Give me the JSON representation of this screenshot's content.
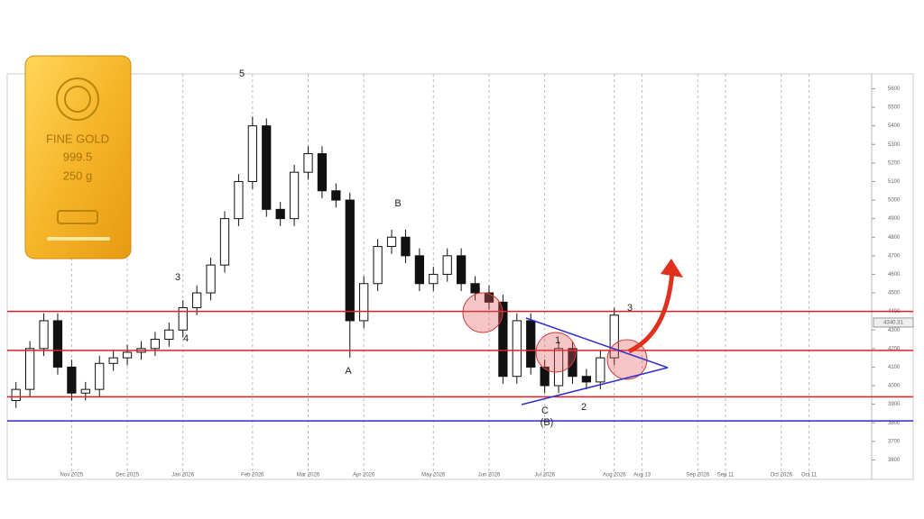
{
  "chart_data": {
    "type": "candlestick",
    "categories": [
      null,
      null,
      null,
      null,
      "Nov 2025",
      null,
      null,
      null,
      "Dec 2025",
      null,
      null,
      null,
      "Jan 2026",
      null,
      null,
      null,
      null,
      "Feb 2026",
      null,
      null,
      null,
      "Mar 2026",
      null,
      null,
      null,
      "Apr 2026",
      null,
      null,
      null,
      null,
      "May 2026",
      null,
      null,
      null,
      "Jun 2026",
      null,
      null,
      null,
      "Jul 2026",
      null,
      null,
      null,
      null,
      "Aug 2026",
      null,
      "Aug 13",
      null,
      null,
      null,
      "Sep 2026",
      null,
      "Sep 11",
      null,
      null,
      null,
      "Oct 2026",
      null,
      "Oct 11",
      null,
      null,
      null,
      null
    ],
    "open": [
      3920,
      3980,
      4200,
      4350,
      4100,
      3960,
      3980,
      4120,
      4150,
      4180,
      4200,
      4250,
      4300,
      4420,
      4500,
      4650,
      4900,
      5100,
      5400,
      4950,
      4900,
      5150,
      5250,
      5050,
      5000,
      4350,
      4550,
      4750,
      4800,
      4700,
      4550,
      4600,
      4700,
      4550,
      4500,
      4450,
      4050,
      4350,
      4100,
      4000,
      4200,
      4050,
      4020,
      4150,
      null,
      null,
      null,
      null,
      null,
      null,
      null,
      null,
      null,
      null,
      null,
      null,
      null,
      null,
      null,
      null,
      null,
      null
    ],
    "high": [
      4020,
      4240,
      4390,
      4390,
      4140,
      4020,
      4160,
      4190,
      4220,
      4240,
      4290,
      4340,
      4460,
      4540,
      4690,
      4940,
      5140,
      5450,
      5440,
      4990,
      5190,
      5290,
      5290,
      5090,
      5040,
      4590,
      4790,
      4840,
      4840,
      4740,
      4640,
      4740,
      4740,
      4590,
      4540,
      4490,
      4390,
      4390,
      4140,
      4240,
      4240,
      4090,
      4190,
      4420,
      null,
      null,
      null,
      null,
      null,
      null,
      null,
      null,
      null,
      null,
      null,
      null,
      null,
      null,
      null,
      null,
      null,
      null
    ],
    "low": [
      3880,
      3940,
      4160,
      4060,
      3920,
      3920,
      3940,
      4080,
      4110,
      4140,
      4160,
      4210,
      4260,
      4380,
      4460,
      4610,
      4860,
      5060,
      4910,
      4860,
      4860,
      5110,
      5010,
      4960,
      4150,
      4310,
      4510,
      4710,
      4660,
      4510,
      4510,
      4560,
      4510,
      4460,
      4410,
      4010,
      4010,
      4060,
      3960,
      3960,
      4010,
      3980,
      3980,
      4110,
      null,
      null,
      null,
      null,
      null,
      null,
      null,
      null,
      null,
      null,
      null,
      null,
      null,
      null,
      null,
      null,
      null,
      null
    ],
    "close": [
      3980,
      4200,
      4350,
      4100,
      3960,
      3980,
      4120,
      4150,
      4180,
      4200,
      4250,
      4300,
      4420,
      4500,
      4650,
      4900,
      5100,
      5400,
      4950,
      4900,
      5150,
      5250,
      5050,
      5000,
      4350,
      4550,
      4750,
      4800,
      4700,
      4550,
      4600,
      4700,
      4550,
      4500,
      4450,
      4050,
      4350,
      4100,
      4000,
      4200,
      4050,
      4020,
      4150,
      4380,
      null,
      null,
      null,
      null,
      null,
      null,
      null,
      null,
      null,
      null,
      null,
      null,
      null,
      null,
      null,
      null,
      null,
      null
    ],
    "ylim": [
      3500,
      5680
    ],
    "yticks": [
      3600,
      3700,
      3800,
      3900,
      4000,
      4100,
      4200,
      4300,
      4400,
      4500,
      4600,
      4700,
      4800,
      4900,
      5000,
      5100,
      5200,
      5300,
      5400,
      5500,
      5600
    ],
    "levels": [
      {
        "value": 4400,
        "color": "#e02020"
      },
      {
        "value": 4190,
        "color": "#e02020"
      },
      {
        "value": 3940,
        "color": "#e02020"
      },
      {
        "value": 3810,
        "color": "#2a2ad0"
      }
    ],
    "last_price": {
      "value": 4340.31,
      "label": "4340.31"
    },
    "annotations": [
      "5",
      "3",
      "4",
      "A",
      "B",
      "C",
      "(B)",
      "1",
      "2",
      "3"
    ]
  },
  "gold_bar": {
    "lines": [
      "FINE GOLD",
      "999.5",
      "250 g"
    ]
  }
}
